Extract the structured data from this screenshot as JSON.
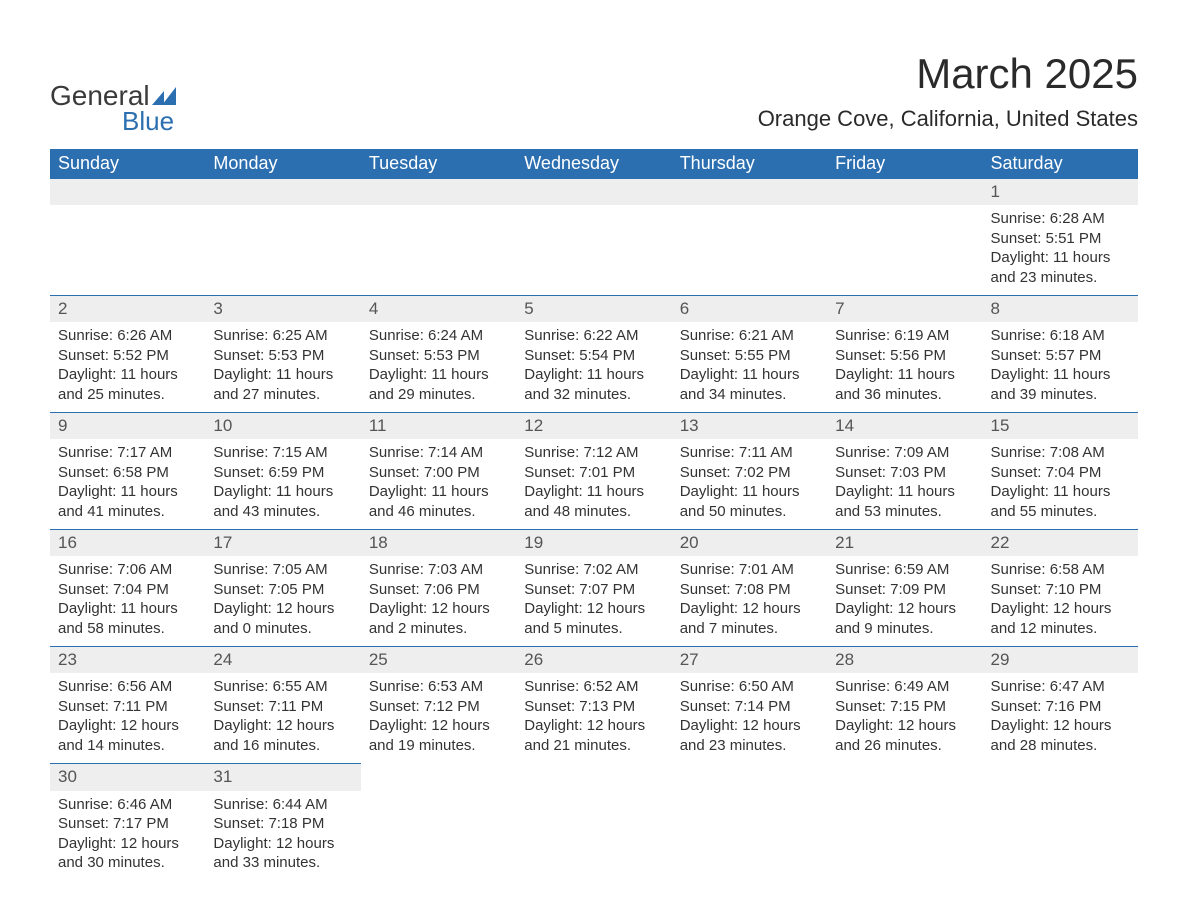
{
  "logo": {
    "text1": "General",
    "text2": "Blue"
  },
  "title": "March 2025",
  "location": "Orange Cove, California, United States",
  "colors": {
    "header_bg": "#2b6fb0",
    "header_fg": "#ffffff",
    "daynum_bg": "#eeeeee",
    "row_border": "#2b6fb0",
    "text": "#333333",
    "background": "#ffffff"
  },
  "fonts": {
    "title_size": 42,
    "location_size": 22,
    "header_size": 18,
    "cell_size": 15
  },
  "weekdays": [
    "Sunday",
    "Monday",
    "Tuesday",
    "Wednesday",
    "Thursday",
    "Friday",
    "Saturday"
  ],
  "weeks": [
    [
      null,
      null,
      null,
      null,
      null,
      null,
      {
        "d": "1",
        "sr": "Sunrise: 6:28 AM",
        "ss": "Sunset: 5:51 PM",
        "dl": "Daylight: 11 hours and 23 minutes."
      }
    ],
    [
      {
        "d": "2",
        "sr": "Sunrise: 6:26 AM",
        "ss": "Sunset: 5:52 PM",
        "dl": "Daylight: 11 hours and 25 minutes."
      },
      {
        "d": "3",
        "sr": "Sunrise: 6:25 AM",
        "ss": "Sunset: 5:53 PM",
        "dl": "Daylight: 11 hours and 27 minutes."
      },
      {
        "d": "4",
        "sr": "Sunrise: 6:24 AM",
        "ss": "Sunset: 5:53 PM",
        "dl": "Daylight: 11 hours and 29 minutes."
      },
      {
        "d": "5",
        "sr": "Sunrise: 6:22 AM",
        "ss": "Sunset: 5:54 PM",
        "dl": "Daylight: 11 hours and 32 minutes."
      },
      {
        "d": "6",
        "sr": "Sunrise: 6:21 AM",
        "ss": "Sunset: 5:55 PM",
        "dl": "Daylight: 11 hours and 34 minutes."
      },
      {
        "d": "7",
        "sr": "Sunrise: 6:19 AM",
        "ss": "Sunset: 5:56 PM",
        "dl": "Daylight: 11 hours and 36 minutes."
      },
      {
        "d": "8",
        "sr": "Sunrise: 6:18 AM",
        "ss": "Sunset: 5:57 PM",
        "dl": "Daylight: 11 hours and 39 minutes."
      }
    ],
    [
      {
        "d": "9",
        "sr": "Sunrise: 7:17 AM",
        "ss": "Sunset: 6:58 PM",
        "dl": "Daylight: 11 hours and 41 minutes."
      },
      {
        "d": "10",
        "sr": "Sunrise: 7:15 AM",
        "ss": "Sunset: 6:59 PM",
        "dl": "Daylight: 11 hours and 43 minutes."
      },
      {
        "d": "11",
        "sr": "Sunrise: 7:14 AM",
        "ss": "Sunset: 7:00 PM",
        "dl": "Daylight: 11 hours and 46 minutes."
      },
      {
        "d": "12",
        "sr": "Sunrise: 7:12 AM",
        "ss": "Sunset: 7:01 PM",
        "dl": "Daylight: 11 hours and 48 minutes."
      },
      {
        "d": "13",
        "sr": "Sunrise: 7:11 AM",
        "ss": "Sunset: 7:02 PM",
        "dl": "Daylight: 11 hours and 50 minutes."
      },
      {
        "d": "14",
        "sr": "Sunrise: 7:09 AM",
        "ss": "Sunset: 7:03 PM",
        "dl": "Daylight: 11 hours and 53 minutes."
      },
      {
        "d": "15",
        "sr": "Sunrise: 7:08 AM",
        "ss": "Sunset: 7:04 PM",
        "dl": "Daylight: 11 hours and 55 minutes."
      }
    ],
    [
      {
        "d": "16",
        "sr": "Sunrise: 7:06 AM",
        "ss": "Sunset: 7:04 PM",
        "dl": "Daylight: 11 hours and 58 minutes."
      },
      {
        "d": "17",
        "sr": "Sunrise: 7:05 AM",
        "ss": "Sunset: 7:05 PM",
        "dl": "Daylight: 12 hours and 0 minutes."
      },
      {
        "d": "18",
        "sr": "Sunrise: 7:03 AM",
        "ss": "Sunset: 7:06 PM",
        "dl": "Daylight: 12 hours and 2 minutes."
      },
      {
        "d": "19",
        "sr": "Sunrise: 7:02 AM",
        "ss": "Sunset: 7:07 PM",
        "dl": "Daylight: 12 hours and 5 minutes."
      },
      {
        "d": "20",
        "sr": "Sunrise: 7:01 AM",
        "ss": "Sunset: 7:08 PM",
        "dl": "Daylight: 12 hours and 7 minutes."
      },
      {
        "d": "21",
        "sr": "Sunrise: 6:59 AM",
        "ss": "Sunset: 7:09 PM",
        "dl": "Daylight: 12 hours and 9 minutes."
      },
      {
        "d": "22",
        "sr": "Sunrise: 6:58 AM",
        "ss": "Sunset: 7:10 PM",
        "dl": "Daylight: 12 hours and 12 minutes."
      }
    ],
    [
      {
        "d": "23",
        "sr": "Sunrise: 6:56 AM",
        "ss": "Sunset: 7:11 PM",
        "dl": "Daylight: 12 hours and 14 minutes."
      },
      {
        "d": "24",
        "sr": "Sunrise: 6:55 AM",
        "ss": "Sunset: 7:11 PM",
        "dl": "Daylight: 12 hours and 16 minutes."
      },
      {
        "d": "25",
        "sr": "Sunrise: 6:53 AM",
        "ss": "Sunset: 7:12 PM",
        "dl": "Daylight: 12 hours and 19 minutes."
      },
      {
        "d": "26",
        "sr": "Sunrise: 6:52 AM",
        "ss": "Sunset: 7:13 PM",
        "dl": "Daylight: 12 hours and 21 minutes."
      },
      {
        "d": "27",
        "sr": "Sunrise: 6:50 AM",
        "ss": "Sunset: 7:14 PM",
        "dl": "Daylight: 12 hours and 23 minutes."
      },
      {
        "d": "28",
        "sr": "Sunrise: 6:49 AM",
        "ss": "Sunset: 7:15 PM",
        "dl": "Daylight: 12 hours and 26 minutes."
      },
      {
        "d": "29",
        "sr": "Sunrise: 6:47 AM",
        "ss": "Sunset: 7:16 PM",
        "dl": "Daylight: 12 hours and 28 minutes."
      }
    ],
    [
      {
        "d": "30",
        "sr": "Sunrise: 6:46 AM",
        "ss": "Sunset: 7:17 PM",
        "dl": "Daylight: 12 hours and 30 minutes."
      },
      {
        "d": "31",
        "sr": "Sunrise: 6:44 AM",
        "ss": "Sunset: 7:18 PM",
        "dl": "Daylight: 12 hours and 33 minutes."
      },
      null,
      null,
      null,
      null,
      null
    ]
  ]
}
